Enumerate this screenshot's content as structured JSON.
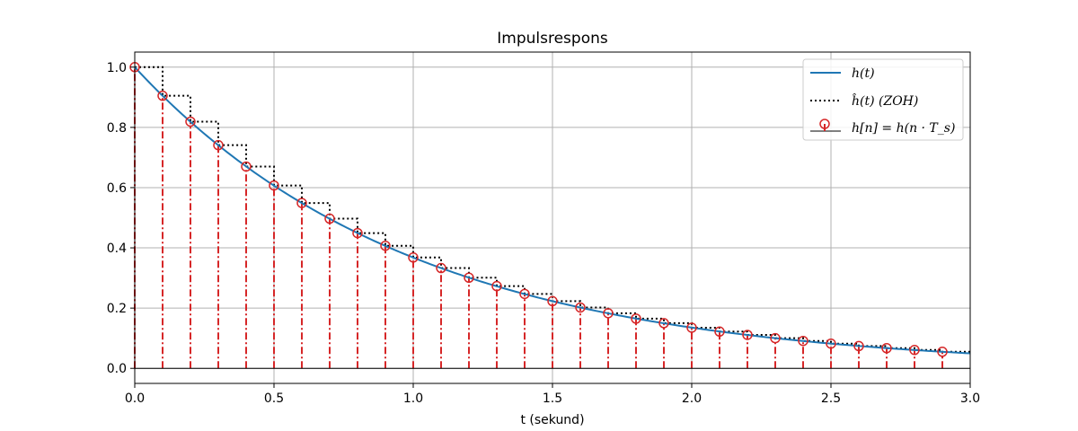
{
  "chart_data": {
    "type": "line",
    "title": "Impulsrespons",
    "xlabel": "t (sekund)",
    "ylabel": "",
    "xlim": [
      0,
      3.0
    ],
    "ylim": [
      -0.05,
      1.05
    ],
    "xticks": [
      0.0,
      0.5,
      1.0,
      1.5,
      2.0,
      2.5,
      3.0
    ],
    "xtick_labels": [
      "0.0",
      "0.5",
      "1.0",
      "1.5",
      "2.0",
      "2.5",
      "3.0"
    ],
    "yticks": [
      0.0,
      0.2,
      0.4,
      0.6,
      0.8,
      1.0
    ],
    "ytick_labels": [
      "0.0",
      "0.2",
      "0.4",
      "0.6",
      "0.8",
      "1.0"
    ],
    "grid": true,
    "legend_position": "top-right",
    "continuous": {
      "name": "h(t)",
      "t": [
        0.0,
        0.1,
        0.2,
        0.3,
        0.4,
        0.5,
        0.6,
        0.7,
        0.8,
        0.9,
        1.0,
        1.1,
        1.2,
        1.3,
        1.4,
        1.5,
        1.6,
        1.7,
        1.8,
        1.9,
        2.0,
        2.1,
        2.2,
        2.3,
        2.4,
        2.5,
        2.6,
        2.7,
        2.8,
        2.9,
        3.0
      ],
      "y": [
        1.0,
        0.905,
        0.819,
        0.741,
        0.67,
        0.607,
        0.549,
        0.497,
        0.449,
        0.407,
        0.368,
        0.333,
        0.301,
        0.273,
        0.247,
        0.223,
        0.202,
        0.183,
        0.165,
        0.15,
        0.135,
        0.122,
        0.111,
        0.1,
        0.091,
        0.082,
        0.074,
        0.067,
        0.061,
        0.055,
        0.05
      ],
      "color": "#1f77b4"
    },
    "zoh": {
      "name": "ĥ(t)   (ZOH)",
      "color": "#000000"
    },
    "samples": {
      "name": "h[n] = h(n · T_s)",
      "t": [
        0.0,
        0.1,
        0.2,
        0.3,
        0.4,
        0.5,
        0.6,
        0.7,
        0.8,
        0.9,
        1.0,
        1.1,
        1.2,
        1.3,
        1.4,
        1.5,
        1.6,
        1.7,
        1.8,
        1.9,
        2.0,
        2.1,
        2.2,
        2.3,
        2.4,
        2.5,
        2.6,
        2.7,
        2.8,
        2.9
      ],
      "y": [
        1.0,
        0.905,
        0.819,
        0.741,
        0.67,
        0.607,
        0.549,
        0.497,
        0.449,
        0.407,
        0.368,
        0.333,
        0.301,
        0.273,
        0.247,
        0.223,
        0.202,
        0.183,
        0.165,
        0.15,
        0.135,
        0.122,
        0.111,
        0.1,
        0.091,
        0.082,
        0.074,
        0.067,
        0.061,
        0.055
      ],
      "color": "#d62728"
    },
    "legend": {
      "entries": [
        "h(t)",
        "ĥ(t)   (ZOH)",
        "h[n] = h(n · T_s)"
      ]
    }
  }
}
